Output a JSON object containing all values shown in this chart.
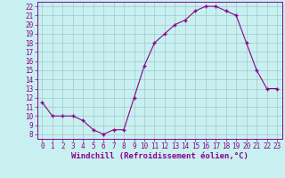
{
  "x": [
    0,
    1,
    2,
    3,
    4,
    5,
    6,
    7,
    8,
    9,
    10,
    11,
    12,
    13,
    14,
    15,
    16,
    17,
    18,
    19,
    20,
    21,
    22,
    23
  ],
  "y": [
    11.5,
    10.0,
    10.0,
    10.0,
    9.5,
    8.5,
    8.0,
    8.5,
    8.5,
    12.0,
    15.5,
    18.0,
    19.0,
    20.0,
    20.5,
    21.5,
    22.0,
    22.0,
    21.5,
    21.0,
    18.0,
    15.0,
    13.0,
    13.0
  ],
  "line_color": "#8B008B",
  "marker": "+",
  "markersize": 3.5,
  "markeredgewidth": 1.0,
  "linewidth": 0.8,
  "bg_color": "#c8f0f0",
  "grid_color": "#a0c8c8",
  "xlabel": "Windchill (Refroidissement éolien,°C)",
  "xlabel_fontsize": 6.5,
  "xlabel_color": "#8B008B",
  "tick_color": "#8B008B",
  "tick_fontsize": 5.5,
  "xlim": [
    -0.5,
    23.5
  ],
  "ylim": [
    7.5,
    22.5
  ],
  "yticks": [
    8,
    9,
    10,
    11,
    12,
    13,
    14,
    15,
    16,
    17,
    18,
    19,
    20,
    21,
    22
  ],
  "xticks": [
    0,
    1,
    2,
    3,
    4,
    5,
    6,
    7,
    8,
    9,
    10,
    11,
    12,
    13,
    14,
    15,
    16,
    17,
    18,
    19,
    20,
    21,
    22,
    23
  ]
}
